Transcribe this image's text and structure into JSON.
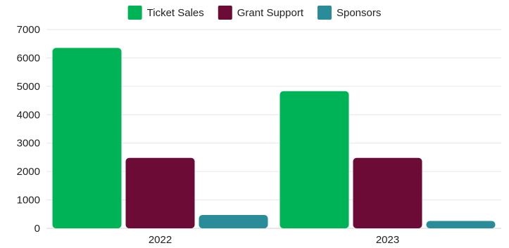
{
  "chart_data": {
    "type": "bar",
    "categories": [
      "2022",
      "2023"
    ],
    "series": [
      {
        "name": "Ticket Sales",
        "values": [
          6350,
          4830
        ],
        "color": "#00b356"
      },
      {
        "name": "Grant Support",
        "values": [
          2480,
          2480
        ],
        "color": "#6b0b36"
      },
      {
        "name": "Sponsors",
        "values": [
          470,
          260
        ],
        "color": "#2a8c98"
      }
    ],
    "ylim": [
      0,
      7000
    ],
    "yticks": [
      "0",
      "1000",
      "2000",
      "3000",
      "4000",
      "5000",
      "6000",
      "7000"
    ],
    "grid": true,
    "legend_position": "top",
    "title": "",
    "xlabel": "",
    "ylabel": ""
  }
}
